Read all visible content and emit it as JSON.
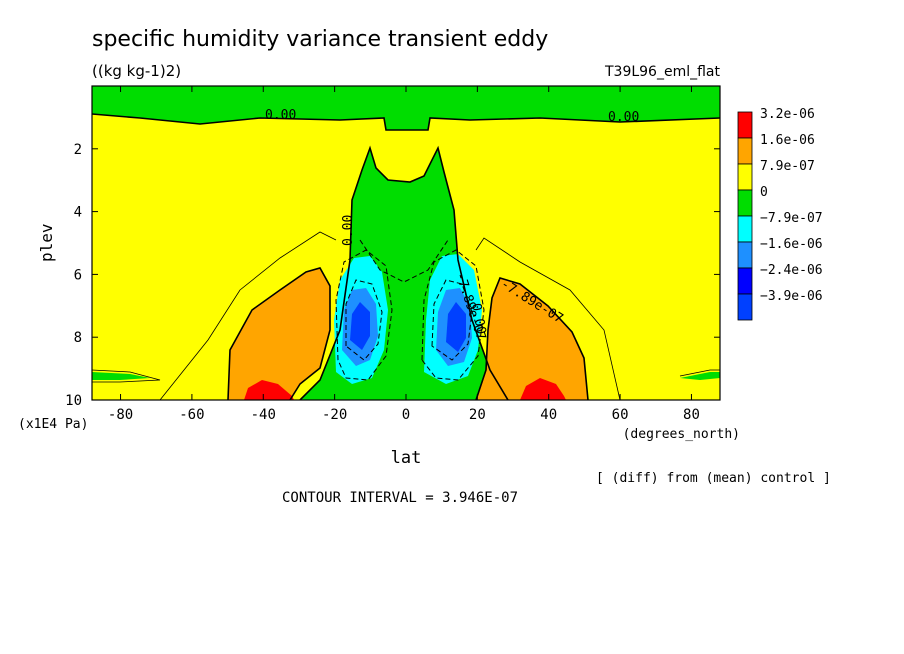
{
  "chart_data": {
    "type": "contour",
    "title": "specific humidity variance transient eddy",
    "units": "((kg kg-1)2)",
    "dataset": "T39L96_eml_flat",
    "xlabel": "lat",
    "xunits": "(degrees_north)",
    "ylabel": "plev",
    "yunits": "(x1E4 Pa)",
    "xlim": [
      -88,
      88
    ],
    "ylim": [
      10,
      0
    ],
    "xticks": [
      "-80",
      "-60",
      "-40",
      "-20",
      "0",
      "20",
      "40",
      "60",
      "80"
    ],
    "yticks": [
      "2",
      "4",
      "6",
      "8",
      "10"
    ],
    "colorbar": {
      "labels": [
        "3.2e-06",
        "1.6e-06",
        "7.9e-07",
        "0",
        "−7.9e-07",
        "−1.6e-06",
        "−2.4e-06",
        "−3.9e-06"
      ],
      "colors": [
        "#ff0000",
        "#ffa500",
        "#ffff00",
        "#00dd00",
        "#00ffff",
        "#1e90ff",
        "#0000ff",
        "#0040ff"
      ]
    },
    "contour_labels": [
      "0.00",
      "0.00",
      "0.00",
      "-7.89e-07",
      "-7.89e-07",
      "0.00"
    ],
    "comparison": "[ (diff) from (mean) control ]",
    "contour_interval": "CONTOUR INTERVAL = 3.946E-07"
  }
}
